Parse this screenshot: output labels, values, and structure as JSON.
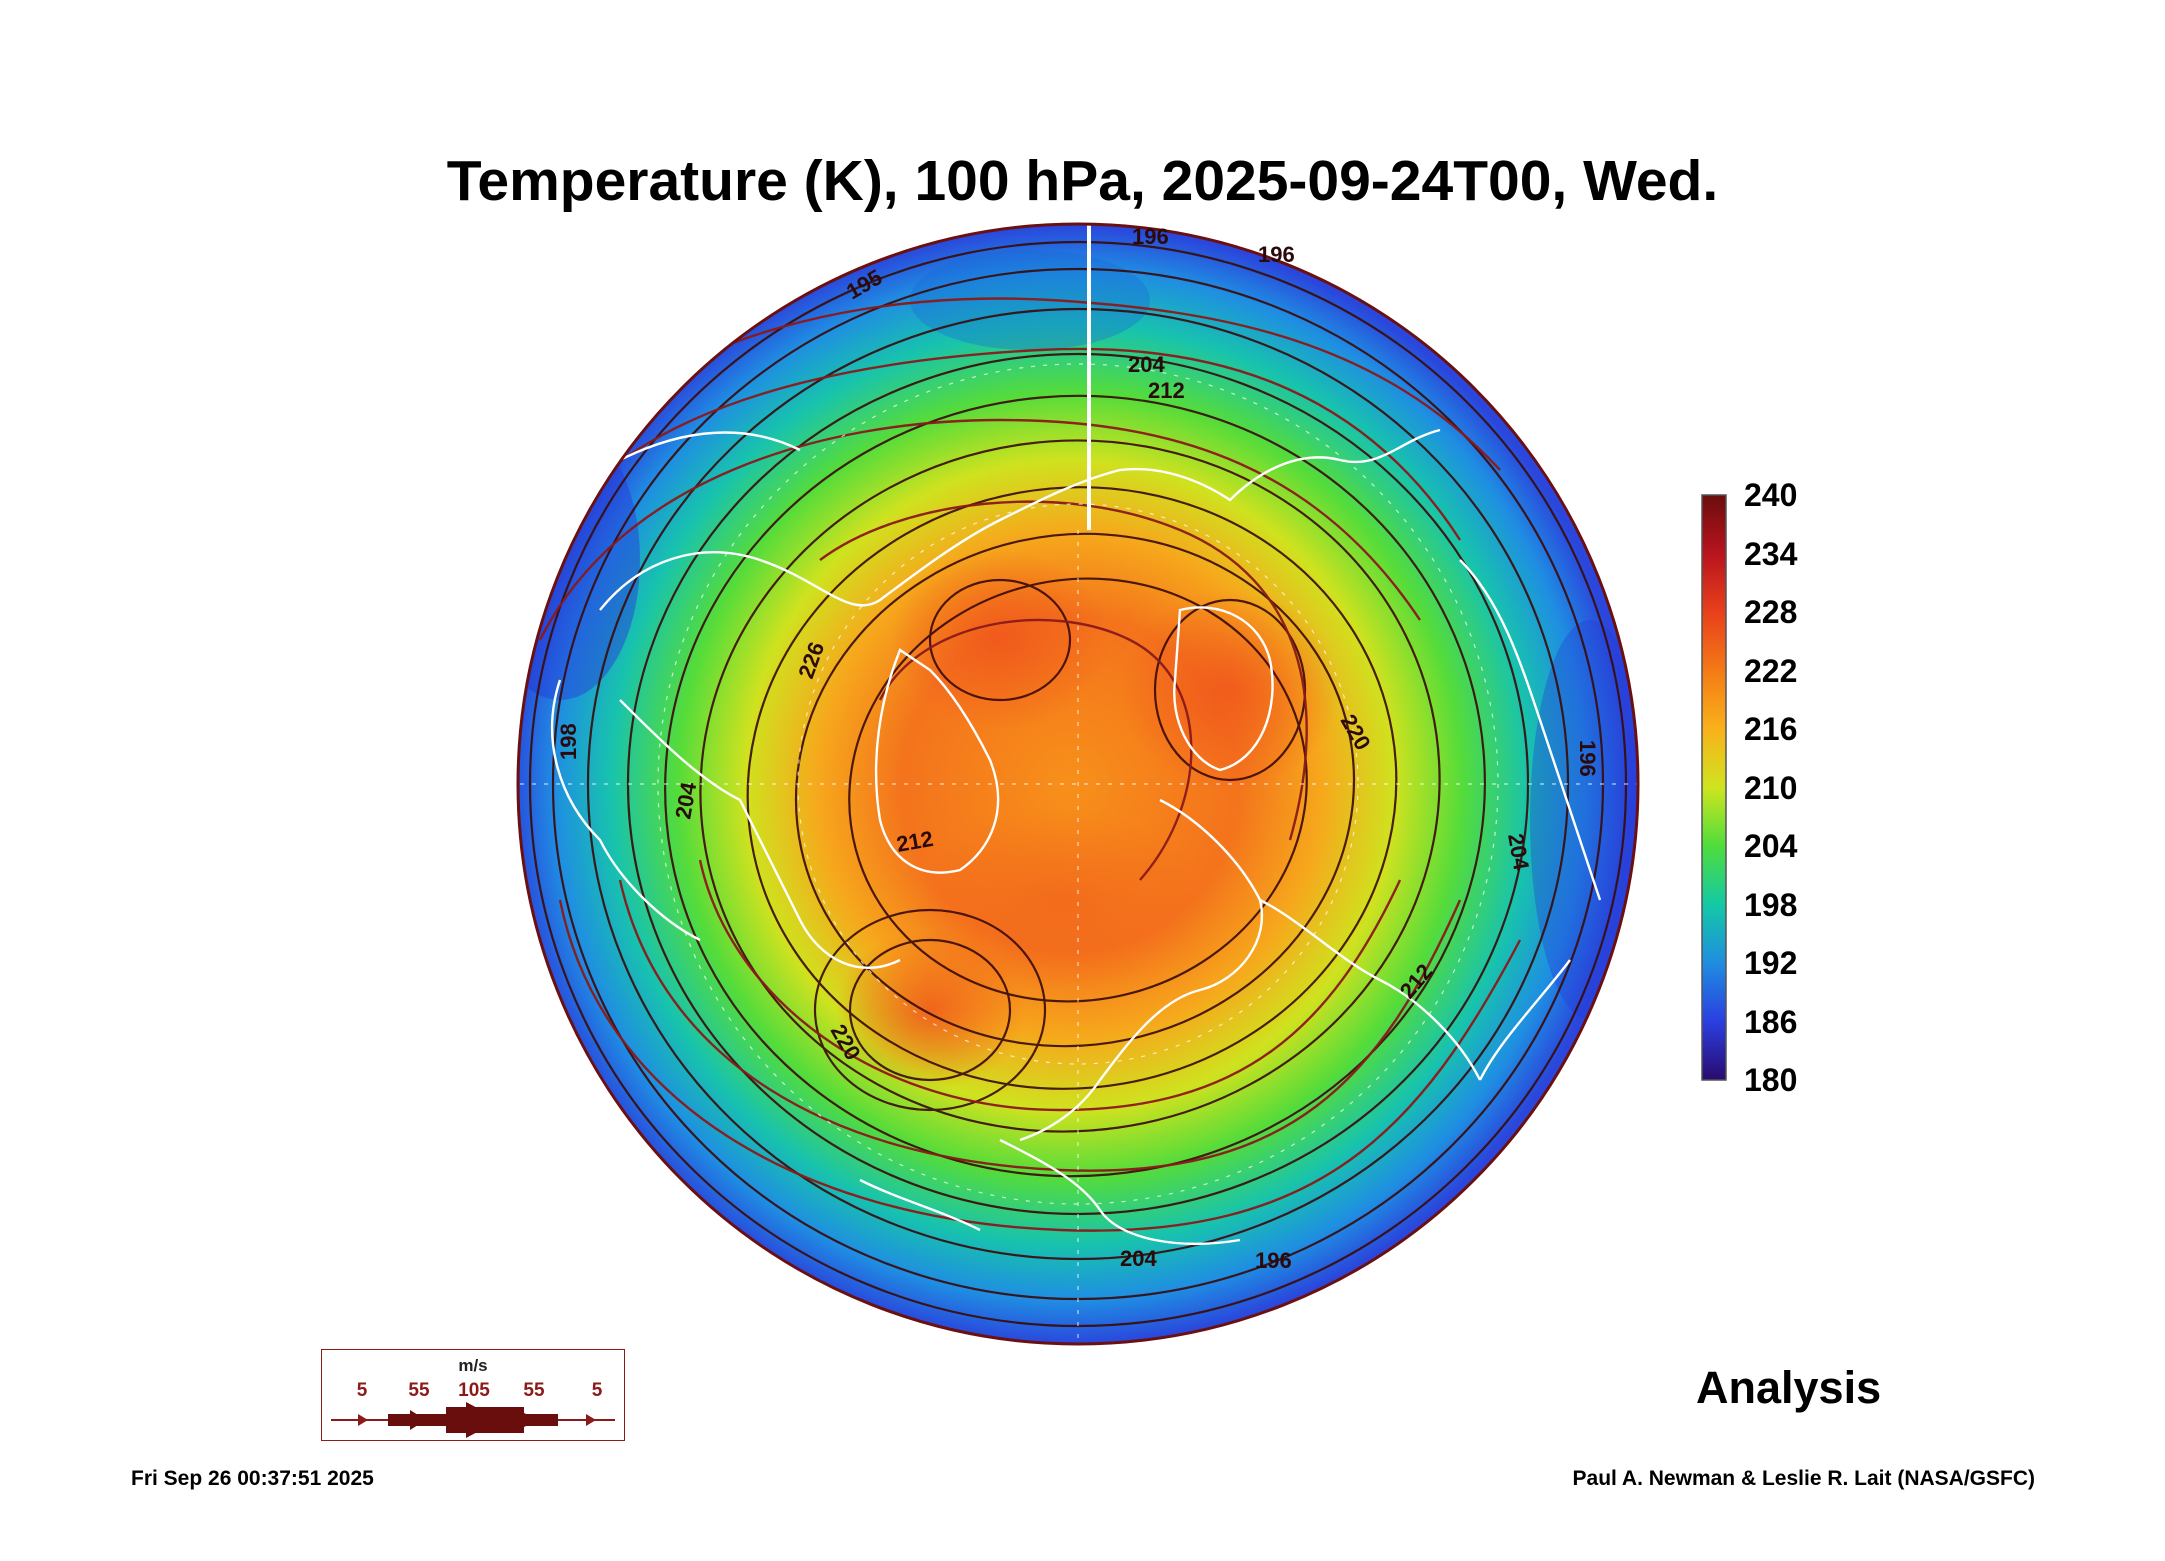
{
  "title": "Temperature (K), 100 hPa, 2025-09-24T00, Wed.",
  "colorbar": {
    "labels": [
      "240",
      "234",
      "228",
      "222",
      "216",
      "210",
      "204",
      "198",
      "192",
      "186",
      "180"
    ],
    "colors": [
      "#6a0d0d",
      "#b8141e",
      "#e8401c",
      "#f47a16",
      "#f9b11b",
      "#cfe41f",
      "#4fdd3c",
      "#14c9a5",
      "#1f8de0",
      "#2a3fe0",
      "#2a0a6e"
    ],
    "min": 180,
    "max": 240
  },
  "contour_labels": [
    "196",
    "196",
    "195",
    "204",
    "212",
    "226",
    "220",
    "212",
    "204",
    "198",
    "220",
    "204",
    "196",
    "212",
    "204",
    "196"
  ],
  "wind_key": {
    "unit": "m/s",
    "values": [
      "5",
      "55",
      "105",
      "55",
      "5"
    ]
  },
  "analysis_label": "Analysis",
  "timestamp": "Fri Sep 26 00:37:51 2025",
  "credit": "Paul A. Newman & Leslie R. Lait (NASA/GSFC)"
}
